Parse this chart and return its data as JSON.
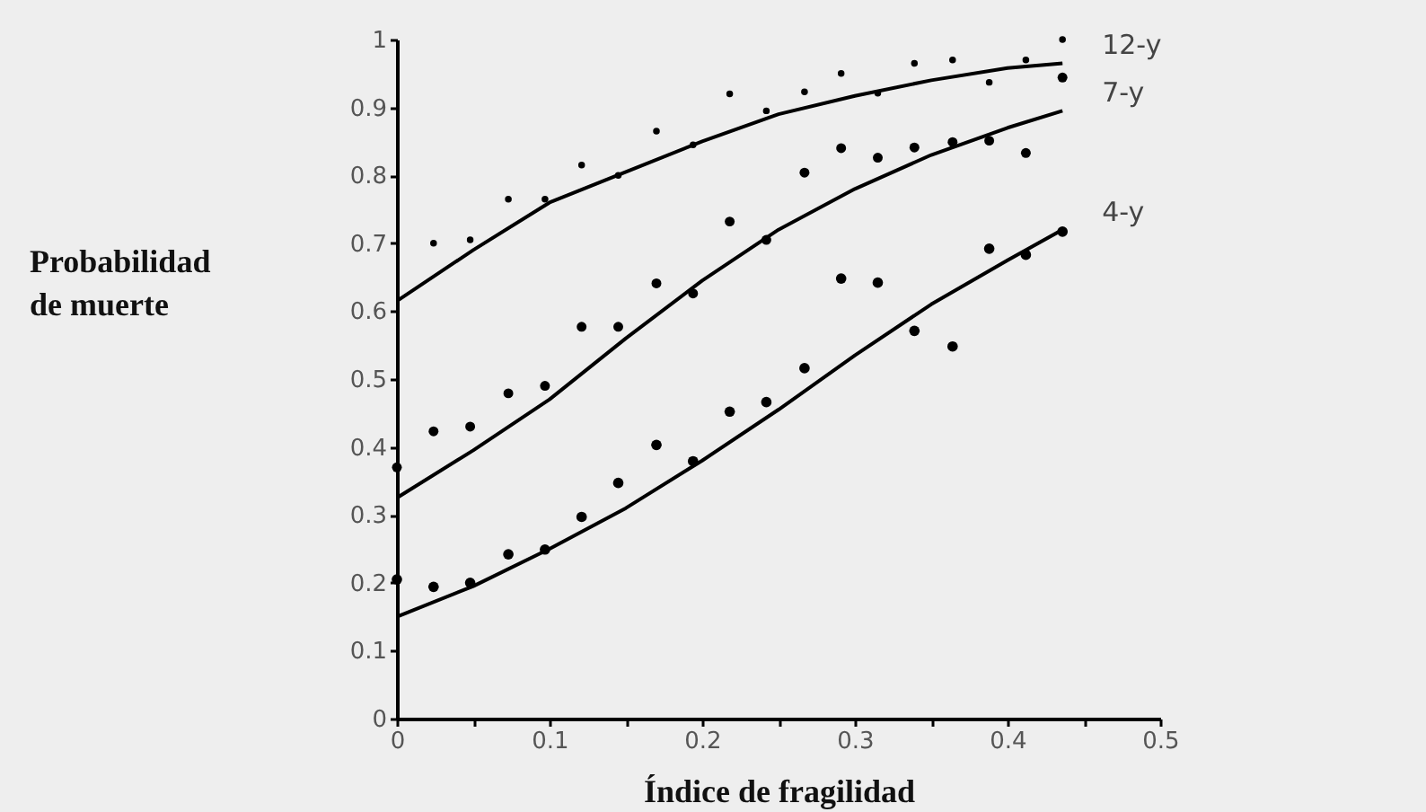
{
  "chart_data": {
    "type": "scatter",
    "xlabel": "Índice de fragilidad",
    "ylabel": "Probabilidad de muerte",
    "x": [
      0,
      0.024,
      0.048,
      0.073,
      0.097,
      0.121,
      0.145,
      0.17,
      0.194,
      0.218,
      0.242,
      0.267,
      0.291,
      0.315,
      0.339,
      0.364,
      0.388,
      0.412,
      0.436
    ],
    "xlim": [
      0,
      0.5
    ],
    "xticks": [
      0,
      {
        "value": 0.05,
        "label": null
      },
      0.1,
      {
        "value": 0.15,
        "label": null
      },
      0.2,
      {
        "value": 0.25,
        "label": null
      },
      0.3,
      {
        "value": 0.35,
        "label": null
      },
      0.4,
      {
        "value": 0.45,
        "label": null
      },
      0.5
    ],
    "ylim": [
      0,
      1
    ],
    "yticks": [
      0,
      0.1,
      0.2,
      0.3,
      0.4,
      0.5,
      0.6,
      0.7,
      0.8,
      0.9,
      1
    ],
    "grid": false,
    "marker": "circle",
    "series": [
      {
        "color": "#000000",
        "values": [
          null,
          0.7,
          0.705,
          0.765,
          0.765,
          0.815,
          0.8,
          0.865,
          0.845,
          0.92,
          0.895,
          0.923,
          0.95,
          0.921,
          0.965,
          0.97,
          0.937,
          0.97,
          1.0
        ]
      },
      {
        "color": "#000000",
        "values": [
          0.37,
          0.423,
          0.43,
          0.479,
          0.49,
          0.577,
          0.577,
          0.641,
          0.626,
          0.732,
          0.705,
          0.804,
          0.84,
          0.826,
          0.841,
          0.849,
          0.851,
          0.833,
          0.944
        ]
      },
      {
        "color": "#000000",
        "values": [
          0.205,
          0.194,
          0.2,
          0.242,
          0.249,
          0.297,
          0.347,
          0.403,
          0.379,
          0.452,
          0.466,
          0.516,
          0.648,
          0.642,
          0.571,
          0.548,
          0.692,
          0.683,
          0.717
        ]
      },
      {
        "type": "line",
        "name": "12-y",
        "color": "#000000",
        "marker": "none",
        "x": [
          0,
          0.05,
          0.1,
          0.15,
          0.2,
          0.25,
          0.3,
          0.35,
          0.4,
          0.436
        ],
        "values": [
          0.615,
          0.69,
          0.76,
          0.805,
          0.85,
          0.89,
          0.917,
          0.94,
          0.958,
          0.965
        ]
      },
      {
        "type": "line",
        "name": "7-y",
        "color": "#000000",
        "marker": "none",
        "x": [
          0,
          0.05,
          0.1,
          0.15,
          0.2,
          0.25,
          0.3,
          0.35,
          0.4,
          0.436
        ],
        "values": [
          0.325,
          0.395,
          0.47,
          0.56,
          0.645,
          0.72,
          0.78,
          0.83,
          0.87,
          0.895
        ]
      },
      {
        "type": "line",
        "name": "4-y",
        "color": "#000000",
        "marker": "none",
        "x": [
          0,
          0.05,
          0.1,
          0.15,
          0.2,
          0.25,
          0.3,
          0.35,
          0.4,
          0.436
        ],
        "values": [
          0.15,
          0.195,
          0.25,
          0.31,
          0.38,
          0.455,
          0.535,
          0.61,
          0.675,
          0.72
        ]
      }
    ]
  }
}
